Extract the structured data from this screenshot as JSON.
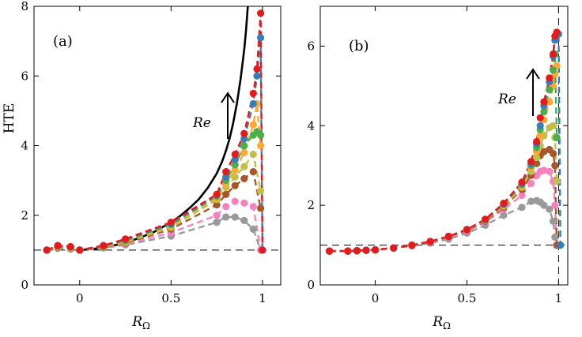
{
  "figure": {
    "ylabel": "HTE",
    "xlabel_main": "R",
    "xlabel_sub": "Ω",
    "series_colors": [
      "#999999",
      "#f781bf",
      "#a65628",
      "#bfbf4a",
      "#ffa832",
      "#4daf4a",
      "#377eb8",
      "#e41a1c"
    ]
  },
  "chart_data": [
    {
      "type": "line",
      "panel_label": "(a)",
      "annotation": "Re",
      "xlabel": "R_Ω",
      "ylabel": "HTE",
      "xlim": [
        -0.25,
        1.1
      ],
      "ylim": [
        0,
        8
      ],
      "xticks": [
        0,
        0.5,
        1
      ],
      "yticks": [
        0,
        2,
        4,
        6,
        8
      ],
      "xtick_labels": [
        "0",
        "0.5",
        "1"
      ],
      "ytick_labels": [
        "0",
        "2",
        "4",
        "6",
        "8"
      ],
      "reference_lines": [
        {
          "orientation": "horizontal",
          "value": 1,
          "style": "dashed"
        }
      ],
      "theory_curve": {
        "name": "theory",
        "color": "#000000",
        "x": [
          0,
          0.1,
          0.2,
          0.3,
          0.4,
          0.5,
          0.55,
          0.6,
          0.65,
          0.7,
          0.75,
          0.78,
          0.8,
          0.82,
          0.84,
          0.86,
          0.88,
          0.9,
          0.91,
          0.92
        ],
        "y": [
          1.0,
          1.05,
          1.15,
          1.3,
          1.5,
          1.8,
          1.98,
          2.2,
          2.45,
          2.78,
          3.2,
          3.55,
          3.85,
          4.2,
          4.65,
          5.2,
          5.9,
          6.75,
          7.3,
          8.0
        ]
      },
      "series": [
        {
          "name": "series 1",
          "color": "#999999",
          "x": [
            -0.18,
            -0.12,
            -0.05,
            0,
            0.13,
            0.25,
            0.5,
            0.75,
            0.8,
            0.85,
            0.9,
            0.95,
            0.99
          ],
          "y": [
            1.0,
            1.05,
            1.03,
            1.0,
            1.06,
            1.15,
            1.4,
            1.8,
            1.95,
            1.95,
            1.85,
            1.6,
            1.0
          ]
        },
        {
          "name": "series 2",
          "color": "#f781bf",
          "x": [
            -0.18,
            -0.12,
            -0.05,
            0,
            0.13,
            0.25,
            0.5,
            0.75,
            0.8,
            0.85,
            0.9,
            0.95,
            0.99
          ],
          "y": [
            1.0,
            1.07,
            1.04,
            1.0,
            1.07,
            1.17,
            1.5,
            2.0,
            2.25,
            2.4,
            2.35,
            2.25,
            1.0
          ]
        },
        {
          "name": "series 3",
          "color": "#a65628",
          "x": [
            -0.18,
            -0.12,
            -0.05,
            0,
            0.13,
            0.25,
            0.5,
            0.75,
            0.8,
            0.85,
            0.9,
            0.95,
            0.99
          ],
          "y": [
            1.0,
            1.08,
            1.05,
            1.0,
            1.08,
            1.2,
            1.6,
            2.3,
            2.6,
            2.85,
            3.05,
            3.25,
            2.2
          ]
        },
        {
          "name": "series 4",
          "color": "#bfbf4a",
          "x": [
            -0.18,
            -0.12,
            -0.05,
            0,
            0.13,
            0.25,
            0.5,
            0.75,
            0.8,
            0.85,
            0.9,
            0.95,
            0.99
          ],
          "y": [
            1.0,
            1.09,
            1.06,
            1.0,
            1.09,
            1.22,
            1.65,
            2.45,
            2.8,
            3.1,
            3.4,
            3.75,
            2.7
          ]
        },
        {
          "name": "series 5",
          "color": "#ffa832",
          "x": [
            -0.18,
            -0.12,
            -0.05,
            0,
            0.13,
            0.25,
            0.5,
            0.75,
            0.8,
            0.85,
            0.9,
            0.95,
            0.97,
            0.99
          ],
          "y": [
            1.0,
            1.1,
            1.07,
            1.0,
            1.1,
            1.25,
            1.7,
            2.5,
            2.9,
            3.3,
            3.8,
            4.6,
            5.2,
            4.0
          ]
        },
        {
          "name": "series 6",
          "color": "#4daf4a",
          "x": [
            -0.18,
            -0.12,
            -0.05,
            0,
            0.13,
            0.25,
            0.5,
            0.75,
            0.8,
            0.85,
            0.9,
            0.95,
            0.97,
            0.99
          ],
          "y": [
            1.0,
            1.11,
            1.08,
            1.0,
            1.11,
            1.27,
            1.73,
            2.55,
            3.0,
            3.45,
            4.0,
            4.3,
            4.4,
            4.3
          ]
        },
        {
          "name": "series 7",
          "color": "#377eb8",
          "x": [
            -0.18,
            -0.12,
            -0.05,
            0,
            0.13,
            0.25,
            0.5,
            0.75,
            0.8,
            0.85,
            0.9,
            0.95,
            0.97,
            0.99,
            1.0
          ],
          "y": [
            1.0,
            1.12,
            1.09,
            1.0,
            1.12,
            1.3,
            1.76,
            2.58,
            3.1,
            3.6,
            4.2,
            5.2,
            6.0,
            7.1,
            1.0
          ]
        },
        {
          "name": "series 8",
          "color": "#e41a1c",
          "x": [
            -0.18,
            -0.12,
            -0.05,
            0,
            0.13,
            0.25,
            0.5,
            0.75,
            0.8,
            0.85,
            0.9,
            0.95,
            0.97,
            0.99,
            1.0
          ],
          "y": [
            1.0,
            1.13,
            1.1,
            1.0,
            1.13,
            1.32,
            1.8,
            2.6,
            3.25,
            3.75,
            4.35,
            5.5,
            6.2,
            7.8,
            1.0
          ]
        }
      ]
    },
    {
      "type": "line",
      "panel_label": "(b)",
      "annotation": "Re",
      "xlabel": "R_Ω",
      "ylabel": "",
      "xlim": [
        -0.3,
        1.05
      ],
      "ylim": [
        0,
        7
      ],
      "xticks": [
        0,
        0.5,
        1
      ],
      "yticks": [
        0,
        2,
        4,
        6
      ],
      "xtick_labels": [
        "0",
        "0.5",
        "1"
      ],
      "ytick_labels": [
        "0",
        "2",
        "4",
        "6"
      ],
      "reference_lines": [
        {
          "orientation": "horizontal",
          "value": 1,
          "style": "dashed"
        },
        {
          "orientation": "vertical",
          "value": 1,
          "style": "dashed"
        }
      ],
      "series": [
        {
          "name": "series 1",
          "color": "#999999",
          "x": [
            -0.25,
            -0.15,
            -0.1,
            -0.05,
            0,
            0.1,
            0.2,
            0.3,
            0.4,
            0.5,
            0.6,
            0.7,
            0.8,
            0.85,
            0.88,
            0.9,
            0.92,
            0.95,
            0.97,
            0.98,
            0.99
          ],
          "y": [
            0.85,
            0.85,
            0.85,
            0.87,
            0.88,
            0.92,
            0.98,
            1.05,
            1.15,
            1.3,
            1.5,
            1.75,
            1.95,
            2.1,
            2.12,
            2.08,
            2.0,
            1.9,
            1.6,
            1.2,
            1.0
          ]
        },
        {
          "name": "series 2",
          "color": "#f781bf",
          "x": [
            -0.25,
            -0.15,
            -0.1,
            -0.05,
            0,
            0.1,
            0.2,
            0.3,
            0.4,
            0.5,
            0.6,
            0.7,
            0.8,
            0.85,
            0.88,
            0.9,
            0.92,
            0.95,
            0.97,
            0.98,
            0.99
          ],
          "y": [
            0.85,
            0.85,
            0.86,
            0.87,
            0.88,
            0.93,
            1.0,
            1.08,
            1.2,
            1.35,
            1.58,
            1.9,
            2.25,
            2.55,
            2.75,
            2.85,
            2.88,
            2.85,
            2.6,
            2.0,
            1.0
          ]
        },
        {
          "name": "series 3",
          "color": "#a65628",
          "x": [
            -0.25,
            -0.15,
            -0.1,
            -0.05,
            0,
            0.1,
            0.2,
            0.3,
            0.4,
            0.5,
            0.6,
            0.7,
            0.8,
            0.85,
            0.88,
            0.9,
            0.92,
            0.95,
            0.97,
            0.98,
            0.99
          ],
          "y": [
            0.85,
            0.85,
            0.86,
            0.87,
            0.88,
            0.93,
            1.0,
            1.09,
            1.21,
            1.37,
            1.6,
            1.95,
            2.4,
            2.75,
            3.05,
            3.25,
            3.35,
            3.4,
            3.3,
            3.0,
            1.0
          ]
        },
        {
          "name": "series 4",
          "color": "#bfbf4a",
          "x": [
            -0.25,
            -0.15,
            -0.1,
            -0.05,
            0,
            0.1,
            0.2,
            0.3,
            0.4,
            0.5,
            0.6,
            0.7,
            0.8,
            0.85,
            0.88,
            0.9,
            0.92,
            0.95,
            0.97,
            0.98,
            0.99
          ],
          "y": [
            0.85,
            0.85,
            0.86,
            0.87,
            0.88,
            0.93,
            1.0,
            1.09,
            1.22,
            1.38,
            1.62,
            1.98,
            2.45,
            2.85,
            3.2,
            3.5,
            3.75,
            3.95,
            4.0,
            3.7,
            2.6
          ]
        },
        {
          "name": "series 5",
          "color": "#ffa832",
          "x": [
            -0.25,
            -0.15,
            -0.1,
            -0.05,
            0,
            0.1,
            0.2,
            0.3,
            0.4,
            0.5,
            0.6,
            0.7,
            0.8,
            0.85,
            0.88,
            0.9,
            0.92,
            0.95,
            0.97,
            0.98,
            0.99
          ],
          "y": [
            0.85,
            0.85,
            0.86,
            0.87,
            0.88,
            0.93,
            1.0,
            1.09,
            1.22,
            1.39,
            1.63,
            2.0,
            2.5,
            2.95,
            3.35,
            3.75,
            4.15,
            4.6,
            5.0,
            5.3,
            5.5
          ]
        },
        {
          "name": "series 6",
          "color": "#4daf4a",
          "x": [
            -0.25,
            -0.15,
            -0.1,
            -0.05,
            0,
            0.1,
            0.2,
            0.3,
            0.4,
            0.5,
            0.6,
            0.7,
            0.8,
            0.85,
            0.88,
            0.9,
            0.92,
            0.95,
            0.97,
            0.98,
            0.99
          ],
          "y": [
            0.85,
            0.85,
            0.86,
            0.87,
            0.88,
            0.93,
            1.0,
            1.09,
            1.22,
            1.39,
            1.64,
            2.02,
            2.52,
            3.0,
            3.45,
            3.9,
            4.35,
            4.9,
            5.4,
            5.8,
            3.7
          ]
        },
        {
          "name": "series 7",
          "color": "#377eb8",
          "x": [
            -0.25,
            -0.15,
            -0.1,
            -0.05,
            0,
            0.1,
            0.2,
            0.3,
            0.4,
            0.5,
            0.6,
            0.7,
            0.8,
            0.85,
            0.88,
            0.9,
            0.92,
            0.95,
            0.97,
            0.98,
            0.99,
            1.0,
            1.01
          ],
          "y": [
            0.85,
            0.85,
            0.86,
            0.87,
            0.88,
            0.93,
            1.0,
            1.09,
            1.22,
            1.39,
            1.64,
            2.03,
            2.55,
            3.05,
            3.55,
            4.0,
            4.5,
            5.1,
            5.75,
            6.15,
            6.3,
            6.3,
            1.0
          ]
        },
        {
          "name": "series 8",
          "color": "#e41a1c",
          "x": [
            -0.25,
            -0.15,
            -0.1,
            -0.05,
            0,
            0.1,
            0.2,
            0.3,
            0.4,
            0.5,
            0.6,
            0.7,
            0.8,
            0.85,
            0.88,
            0.9,
            0.92,
            0.95,
            0.97,
            0.98,
            0.99
          ],
          "y": [
            0.85,
            0.85,
            0.86,
            0.87,
            0.88,
            0.93,
            1.0,
            1.09,
            1.22,
            1.39,
            1.65,
            2.05,
            2.58,
            3.1,
            3.6,
            4.2,
            4.6,
            5.2,
            5.8,
            6.25,
            6.35
          ]
        }
      ]
    }
  ]
}
